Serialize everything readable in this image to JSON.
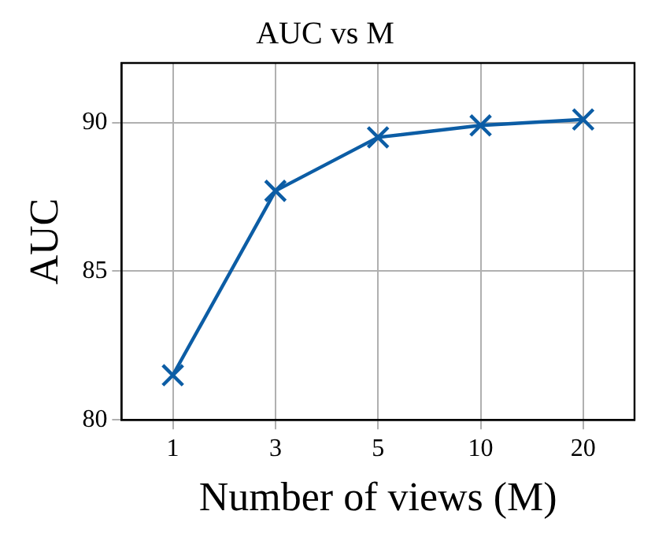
{
  "chart_data": {
    "type": "line",
    "title": "AUC vs M",
    "xlabel": "Number of views (M)",
    "ylabel": "AUC",
    "categories": [
      "1",
      "3",
      "5",
      "10",
      "20"
    ],
    "series": [
      {
        "color": "#0c5da5",
        "values": [
          81.5,
          87.7,
          89.5,
          89.9,
          90.1
        ]
      }
    ],
    "ylim": [
      80,
      92
    ],
    "yticks": [
      80,
      85,
      90
    ],
    "grid": true,
    "legend": false,
    "marker": "cross",
    "line_style": "solid"
  }
}
